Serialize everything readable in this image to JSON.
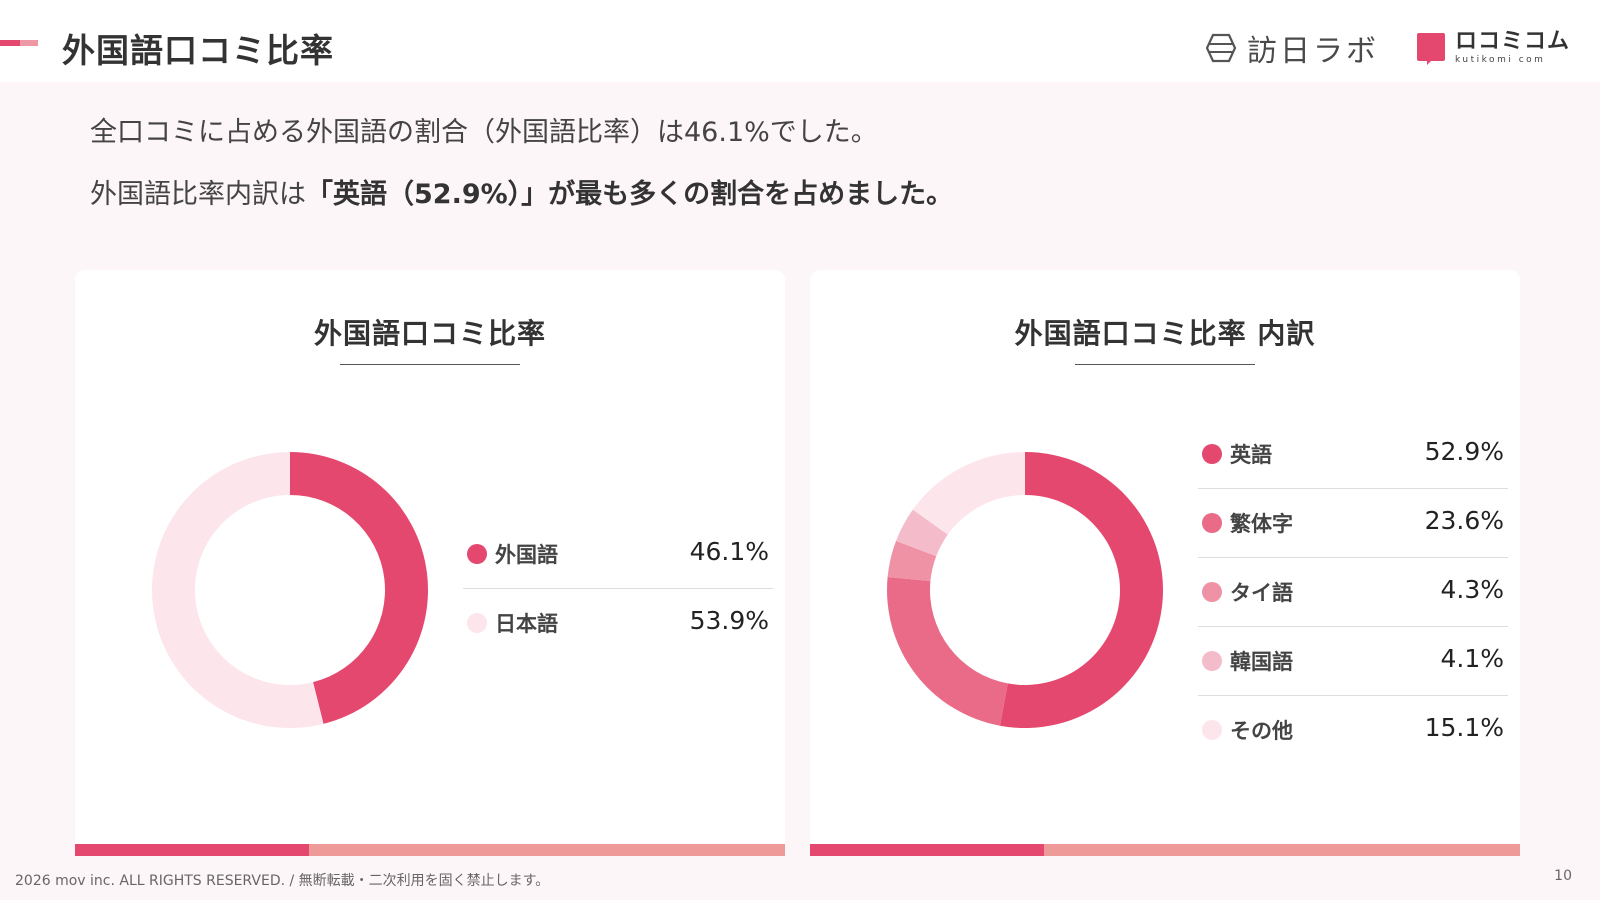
{
  "header": {
    "title": "外国語口コミ比率",
    "logo_houchi": "訪日ラボ",
    "logo_kuchikomi": "ロコミコム",
    "logo_kuchikomi_sub": "kutikomi com"
  },
  "lead": {
    "line1": "全口コミに占める外国語の割合（外国語比率）は46.1%でした。",
    "line2_prefix": "外国語比率内訳は",
    "line2_bold": "「英語（52.9%）」が最も多くの割合を占めました。"
  },
  "chart_data": [
    {
      "type": "pie",
      "title": "外国語口コミ比率",
      "categories": [
        "外国語",
        "日本語"
      ],
      "values": [
        46.1,
        53.9
      ],
      "value_labels": [
        "46.1%",
        "53.9%"
      ],
      "colors": [
        "#e4486e",
        "#fde5ec"
      ],
      "donut": true,
      "legend": "right"
    },
    {
      "type": "pie",
      "title": "外国語口コミ比率 内訳",
      "categories": [
        "英語",
        "繁体字",
        "タイ語",
        "韓国語",
        "その他"
      ],
      "values": [
        52.9,
        23.6,
        4.3,
        4.1,
        15.1
      ],
      "value_labels": [
        "52.9%",
        "23.6%",
        "4.3%",
        "4.1%",
        "15.1%"
      ],
      "colors": [
        "#e4486e",
        "#ea6b88",
        "#f092a6",
        "#f4bccb",
        "#fde5ec"
      ],
      "donut": true,
      "legend": "right"
    }
  ],
  "footer": {
    "copyright": "2026 mov inc. ALL RIGHTS RESERVED. / 無断転載・二次利用を固く禁止します。",
    "page": "10"
  }
}
